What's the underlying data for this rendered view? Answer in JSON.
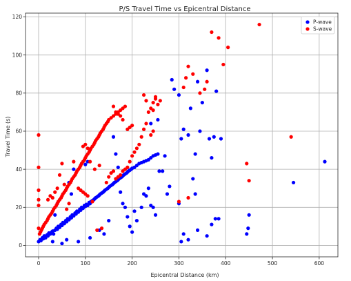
{
  "chart_data": {
    "type": "scatter",
    "title": "P/S Travel Time vs Epicentral Distance",
    "xlabel": "Epicentral Distance (km)",
    "ylabel": "Travel Time (s)",
    "xlim": [
      -28,
      640
    ],
    "ylim": [
      -6,
      122
    ],
    "xticks": [
      0,
      100,
      200,
      300,
      400,
      500,
      600
    ],
    "yticks": [
      0,
      20,
      40,
      60,
      80,
      100,
      120
    ],
    "grid": true,
    "legend_position": "top-right",
    "series": [
      {
        "name": "P-wave",
        "color": "#0000ff",
        "points": [
          [
            0,
            2
          ],
          [
            3,
            3
          ],
          [
            5,
            2.5
          ],
          [
            8,
            4
          ],
          [
            10,
            3.5
          ],
          [
            12,
            5
          ],
          [
            15,
            4
          ],
          [
            18,
            5.5
          ],
          [
            20,
            5
          ],
          [
            22,
            6.5
          ],
          [
            25,
            6
          ],
          [
            28,
            7
          ],
          [
            30,
            7.5
          ],
          [
            32,
            6
          ],
          [
            35,
            8
          ],
          [
            38,
            9
          ],
          [
            40,
            8.5
          ],
          [
            42,
            10
          ],
          [
            45,
            9.5
          ],
          [
            48,
            11
          ],
          [
            50,
            10.5
          ],
          [
            52,
            12
          ],
          [
            55,
            11.5
          ],
          [
            58,
            13
          ],
          [
            60,
            12.5
          ],
          [
            62,
            14
          ],
          [
            65,
            13.5
          ],
          [
            68,
            15
          ],
          [
            70,
            14.5
          ],
          [
            72,
            16
          ],
          [
            75,
            15.5
          ],
          [
            78,
            17
          ],
          [
            80,
            16.5
          ],
          [
            82,
            18
          ],
          [
            85,
            17.5
          ],
          [
            88,
            19
          ],
          [
            90,
            18.5
          ],
          [
            92,
            20
          ],
          [
            95,
            19.5
          ],
          [
            98,
            21
          ],
          [
            100,
            20.5
          ],
          [
            102,
            21.5
          ],
          [
            105,
            21
          ],
          [
            108,
            22.5
          ],
          [
            110,
            22
          ],
          [
            112,
            23
          ],
          [
            115,
            23.5
          ],
          [
            118,
            24
          ],
          [
            120,
            24.5
          ],
          [
            122,
            25
          ],
          [
            125,
            25.5
          ],
          [
            128,
            26
          ],
          [
            130,
            26.5
          ],
          [
            132,
            27
          ],
          [
            135,
            27.5
          ],
          [
            138,
            28
          ],
          [
            140,
            28.5
          ],
          [
            142,
            29
          ],
          [
            145,
            29.5
          ],
          [
            148,
            30
          ],
          [
            150,
            30.5
          ],
          [
            152,
            31
          ],
          [
            155,
            31.5
          ],
          [
            158,
            32
          ],
          [
            160,
            32.5
          ],
          [
            162,
            33
          ],
          [
            165,
            33.5
          ],
          [
            168,
            34
          ],
          [
            170,
            34.5
          ],
          [
            172,
            35
          ],
          [
            175,
            35.5
          ],
          [
            178,
            36
          ],
          [
            180,
            36.5
          ],
          [
            182,
            37
          ],
          [
            185,
            37.5
          ],
          [
            188,
            38
          ],
          [
            190,
            38.5
          ],
          [
            192,
            39
          ],
          [
            195,
            39.5
          ],
          [
            198,
            40
          ],
          [
            200,
            40.5
          ],
          [
            205,
            41
          ],
          [
            210,
            42
          ],
          [
            215,
            43
          ],
          [
            220,
            43.5
          ],
          [
            225,
            44
          ],
          [
            230,
            44.5
          ],
          [
            235,
            45
          ],
          [
            240,
            46
          ],
          [
            245,
            47
          ],
          [
            250,
            47.5
          ],
          [
            255,
            48
          ],
          [
            100,
            42.5
          ],
          [
            105,
            44
          ],
          [
            75,
            40
          ],
          [
            65,
            33
          ],
          [
            70,
            27
          ],
          [
            40,
            22
          ],
          [
            35,
            16
          ],
          [
            30,
            2
          ],
          [
            50,
            1
          ],
          [
            60,
            3
          ],
          [
            85,
            2
          ],
          [
            110,
            4
          ],
          [
            130,
            8
          ],
          [
            140,
            6
          ],
          [
            150,
            13
          ],
          [
            160,
            57
          ],
          [
            165,
            48
          ],
          [
            170,
            41
          ],
          [
            175,
            28
          ],
          [
            180,
            22
          ],
          [
            185,
            20
          ],
          [
            190,
            15
          ],
          [
            195,
            10
          ],
          [
            200,
            7
          ],
          [
            205,
            18
          ],
          [
            210,
            13
          ],
          [
            220,
            20
          ],
          [
            225,
            27
          ],
          [
            230,
            26
          ],
          [
            235,
            30
          ],
          [
            240,
            21
          ],
          [
            245,
            20
          ],
          [
            250,
            16
          ],
          [
            255,
            66
          ],
          [
            240,
            64
          ],
          [
            258,
            39
          ],
          [
            265,
            39
          ],
          [
            270,
            47
          ],
          [
            275,
            27
          ],
          [
            280,
            31
          ],
          [
            285,
            87
          ],
          [
            290,
            82
          ],
          [
            300,
            79
          ],
          [
            305,
            56
          ],
          [
            310,
            61
          ],
          [
            320,
            58
          ],
          [
            325,
            72
          ],
          [
            330,
            35
          ],
          [
            335,
            48
          ],
          [
            340,
            86
          ],
          [
            345,
            60
          ],
          [
            350,
            75
          ],
          [
            360,
            92
          ],
          [
            365,
            56
          ],
          [
            370,
            46
          ],
          [
            375,
            57
          ],
          [
            380,
            81
          ],
          [
            390,
            56
          ],
          [
            300,
            22
          ],
          [
            305,
            2
          ],
          [
            310,
            6
          ],
          [
            320,
            3
          ],
          [
            335,
            27
          ],
          [
            340,
            8
          ],
          [
            360,
            5
          ],
          [
            370,
            11
          ],
          [
            378,
            14
          ],
          [
            385,
            14
          ],
          [
            445,
            6
          ],
          [
            448,
            9
          ],
          [
            450,
            16
          ],
          [
            545,
            33
          ],
          [
            612,
            44
          ]
        ]
      },
      {
        "name": "S-wave",
        "color": "#ff0000",
        "points": [
          [
            0,
            58
          ],
          [
            0,
            41
          ],
          [
            0,
            29
          ],
          [
            0,
            24
          ],
          [
            0,
            21
          ],
          [
            0,
            9
          ],
          [
            2,
            6
          ],
          [
            4,
            7
          ],
          [
            6,
            8
          ],
          [
            8,
            9
          ],
          [
            10,
            10
          ],
          [
            12,
            11
          ],
          [
            15,
            12
          ],
          [
            18,
            13
          ],
          [
            20,
            14
          ],
          [
            22,
            15
          ],
          [
            25,
            16
          ],
          [
            28,
            17
          ],
          [
            30,
            18
          ],
          [
            32,
            19
          ],
          [
            35,
            20
          ],
          [
            38,
            21
          ],
          [
            40,
            22
          ],
          [
            42,
            23
          ],
          [
            45,
            24
          ],
          [
            48,
            25
          ],
          [
            50,
            26
          ],
          [
            52,
            27
          ],
          [
            55,
            28
          ],
          [
            58,
            29
          ],
          [
            60,
            30
          ],
          [
            62,
            31
          ],
          [
            65,
            32
          ],
          [
            68,
            33
          ],
          [
            70,
            34
          ],
          [
            72,
            35
          ],
          [
            75,
            36
          ],
          [
            78,
            37
          ],
          [
            80,
            38
          ],
          [
            82,
            39
          ],
          [
            85,
            40
          ],
          [
            88,
            41
          ],
          [
            90,
            42
          ],
          [
            92,
            43
          ],
          [
            95,
            44
          ],
          [
            98,
            45
          ],
          [
            100,
            46
          ],
          [
            102,
            47
          ],
          [
            105,
            48
          ],
          [
            108,
            49
          ],
          [
            110,
            50
          ],
          [
            112,
            51
          ],
          [
            115,
            52
          ],
          [
            118,
            53
          ],
          [
            120,
            54
          ],
          [
            122,
            55
          ],
          [
            125,
            56
          ],
          [
            128,
            57
          ],
          [
            130,
            58
          ],
          [
            132,
            59
          ],
          [
            135,
            60
          ],
          [
            138,
            61
          ],
          [
            140,
            62
          ],
          [
            142,
            63
          ],
          [
            145,
            64
          ],
          [
            148,
            65
          ],
          [
            150,
            66
          ],
          [
            155,
            67
          ],
          [
            160,
            68
          ],
          [
            165,
            69
          ],
          [
            170,
            70
          ],
          [
            175,
            71
          ],
          [
            180,
            72
          ],
          [
            185,
            73
          ],
          [
            190,
            61
          ],
          [
            195,
            62
          ],
          [
            200,
            63
          ],
          [
            160,
            73
          ],
          [
            165,
            70
          ],
          [
            170,
            69
          ],
          [
            175,
            68
          ],
          [
            180,
            66
          ],
          [
            95,
            52
          ],
          [
            100,
            53
          ],
          [
            105,
            51
          ],
          [
            130,
            42
          ],
          [
            120,
            40
          ],
          [
            110,
            44
          ],
          [
            50,
            43
          ],
          [
            45,
            37
          ],
          [
            30,
            25
          ],
          [
            60,
            19
          ],
          [
            65,
            22
          ],
          [
            20,
            24
          ],
          [
            25,
            26
          ],
          [
            35,
            28
          ],
          [
            40,
            30
          ],
          [
            55,
            32
          ],
          [
            75,
            44
          ],
          [
            85,
            30
          ],
          [
            90,
            29
          ],
          [
            95,
            28
          ],
          [
            100,
            27
          ],
          [
            105,
            26
          ],
          [
            115,
            23
          ],
          [
            125,
            8
          ],
          [
            135,
            9
          ],
          [
            145,
            33
          ],
          [
            150,
            36
          ],
          [
            155,
            38
          ],
          [
            160,
            39
          ],
          [
            165,
            35
          ],
          [
            170,
            36
          ],
          [
            175,
            37
          ],
          [
            180,
            39
          ],
          [
            185,
            40
          ],
          [
            190,
            41
          ],
          [
            195,
            44
          ],
          [
            200,
            47
          ],
          [
            205,
            49
          ],
          [
            210,
            51
          ],
          [
            215,
            53
          ],
          [
            220,
            57
          ],
          [
            225,
            61
          ],
          [
            230,
            64
          ],
          [
            235,
            70
          ],
          [
            240,
            72
          ],
          [
            245,
            75
          ],
          [
            250,
            78
          ],
          [
            255,
            74
          ],
          [
            260,
            76
          ],
          [
            225,
            79
          ],
          [
            230,
            76
          ],
          [
            245,
            71
          ],
          [
            250,
            77
          ],
          [
            240,
            58
          ],
          [
            245,
            60
          ],
          [
            300,
            23
          ],
          [
            320,
            25
          ],
          [
            310,
            83
          ],
          [
            315,
            88
          ],
          [
            320,
            94
          ],
          [
            330,
            90
          ],
          [
            345,
            80
          ],
          [
            355,
            82
          ],
          [
            360,
            86
          ],
          [
            370,
            112
          ],
          [
            385,
            109
          ],
          [
            395,
            95
          ],
          [
            405,
            104
          ],
          [
            445,
            43
          ],
          [
            450,
            34
          ],
          [
            472,
            116
          ],
          [
            540,
            57
          ]
        ]
      }
    ]
  }
}
